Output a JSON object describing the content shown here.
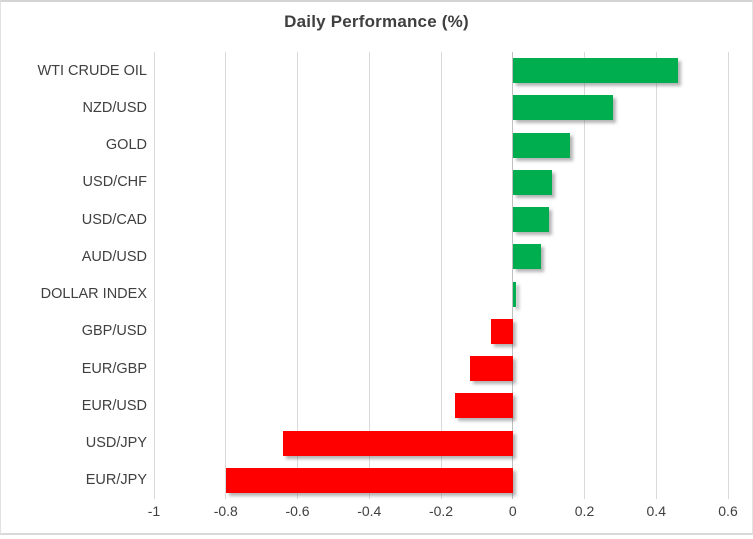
{
  "chart_data": {
    "type": "bar",
    "orientation": "horizontal",
    "title": "Daily Performance (%)",
    "categories": [
      "WTI CRUDE OIL",
      "NZD/USD",
      "GOLD",
      "USD/CHF",
      "USD/CAD",
      "AUD/USD",
      "DOLLAR INDEX",
      "GBP/USD",
      "EUR/GBP",
      "EUR/USD",
      "USD/JPY",
      "EUR/JPY"
    ],
    "values": [
      0.46,
      0.28,
      0.16,
      0.11,
      0.1,
      0.08,
      0.01,
      -0.06,
      -0.12,
      -0.16,
      -0.64,
      -0.8
    ],
    "xlabel": "",
    "ylabel": "",
    "xlim": [
      -1,
      0.6
    ],
    "tick_values": [
      -1,
      -0.8,
      -0.6,
      -0.4,
      -0.2,
      0,
      0.2,
      0.4,
      0.6
    ],
    "tick_labels": [
      "-1",
      "-0.8",
      "-0.6",
      "-0.4",
      "-0.2",
      "0",
      "0.2",
      "0.4",
      "0.6"
    ],
    "grid": "vertical-on",
    "legend_position": "none",
    "positive_color": "#00AE50",
    "negative_color": "#FF0000",
    "gridline_color": "#D9D9D9",
    "zero_axis_color": "#BFBFBF",
    "text_color": "#404040"
  }
}
